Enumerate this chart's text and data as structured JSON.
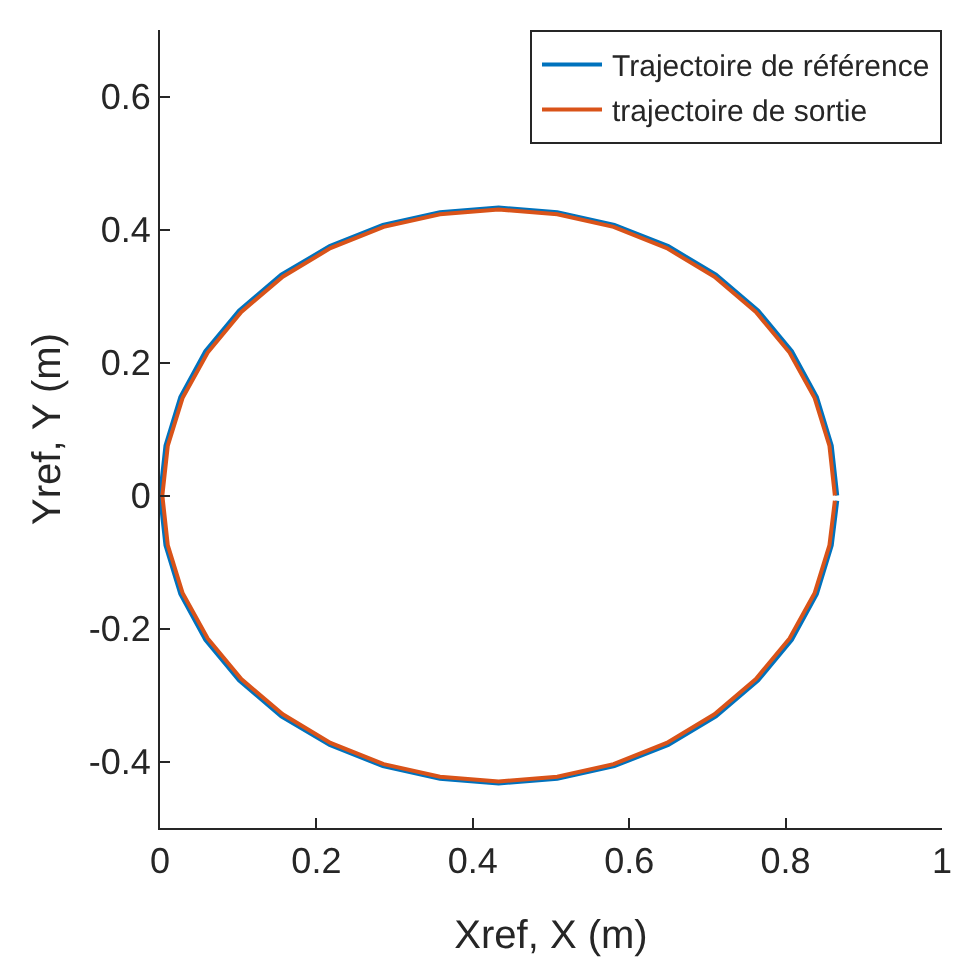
{
  "chart_data": {
    "type": "line",
    "xlabel": "Xref, X (m)",
    "ylabel": "Yref, Y (m)",
    "xlim": [
      0,
      1
    ],
    "xticks": [
      0,
      0.2,
      0.4,
      0.6,
      0.8,
      1
    ],
    "ylim": [
      -0.5,
      0.7
    ],
    "yticks": [
      -0.4,
      -0.2,
      0,
      0.2,
      0.4,
      0.6
    ],
    "grid": false,
    "legend": "top right",
    "line_style": "solid",
    "marker": "none",
    "series": [
      {
        "name": "Trajectoire de référence",
        "color": "#0072bd",
        "x": [
          0.866,
          0.859,
          0.84,
          0.808,
          0.765,
          0.711,
          0.65,
          0.581,
          0.508,
          0.433,
          0.358,
          0.285,
          0.217,
          0.155,
          0.101,
          0.058,
          0.026,
          0.007,
          0,
          0.007,
          0.026,
          0.058,
          0.101,
          0.155,
          0.217,
          0.285,
          0.358,
          0.433,
          0.508,
          0.581,
          0.65,
          0.711,
          0.765,
          0.808,
          0.84,
          0.859,
          0.866
        ],
        "values": [
          0,
          0.075,
          0.148,
          0.217,
          0.278,
          0.332,
          0.375,
          0.407,
          0.426,
          0.433,
          0.426,
          0.407,
          0.375,
          0.332,
          0.278,
          0.217,
          0.148,
          0.075,
          0,
          -0.075,
          -0.148,
          -0.217,
          -0.278,
          -0.332,
          -0.375,
          -0.407,
          -0.426,
          -0.433,
          -0.426,
          -0.407,
          -0.375,
          -0.332,
          -0.278,
          -0.217,
          -0.148,
          -0.075,
          -0.008
        ]
      },
      {
        "name": "trajectoire de sortie",
        "color": "#d95319",
        "x": [
          0.863,
          0.856,
          0.837,
          0.805,
          0.762,
          0.709,
          0.648,
          0.58,
          0.508,
          0.433,
          0.358,
          0.286,
          0.218,
          0.157,
          0.104,
          0.061,
          0.029,
          0.01,
          0.003,
          0.01,
          0.029,
          0.061,
          0.104,
          0.157,
          0.218,
          0.286,
          0.358,
          0.433,
          0.508,
          0.58,
          0.648,
          0.709,
          0.762,
          0.805,
          0.837,
          0.856,
          0.863
        ],
        "values": [
          0,
          0.075,
          0.147,
          0.215,
          0.276,
          0.329,
          0.372,
          0.404,
          0.423,
          0.43,
          0.423,
          0.404,
          0.372,
          0.329,
          0.276,
          0.215,
          0.147,
          0.075,
          0,
          -0.075,
          -0.147,
          -0.215,
          -0.276,
          -0.329,
          -0.372,
          -0.404,
          -0.423,
          -0.43,
          -0.423,
          -0.404,
          -0.372,
          -0.329,
          -0.276,
          -0.215,
          -0.147,
          -0.075,
          -0.008
        ]
      }
    ]
  }
}
